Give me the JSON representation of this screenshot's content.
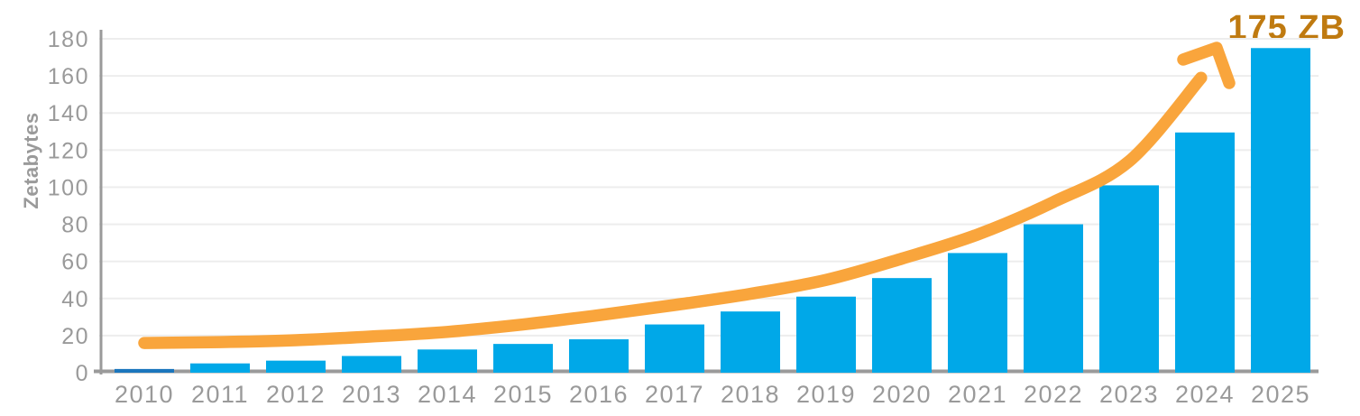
{
  "chart_data": {
    "type": "bar",
    "title": "",
    "xlabel": "",
    "ylabel": "Zetabytes",
    "categories": [
      "2010",
      "2011",
      "2012",
      "2013",
      "2014",
      "2015",
      "2016",
      "2017",
      "2018",
      "2019",
      "2020",
      "2021",
      "2022",
      "2023",
      "2024",
      "2025"
    ],
    "values": [
      2,
      5,
      6.5,
      9,
      12.5,
      15.5,
      18,
      26,
      33,
      41,
      51,
      64.5,
      80,
      101,
      129.5,
      175
    ],
    "ylim": [
      0,
      180
    ],
    "yticks": [
      "0",
      "20",
      "40",
      "60",
      "80",
      "100",
      "120",
      "140",
      "160",
      "180"
    ],
    "grid": true,
    "legend": false,
    "bar_color": "#00a8e8",
    "first_bar_color": "#1b76bd",
    "annotation": {
      "label": "175 ZB",
      "color": "#bf7a10"
    },
    "trend_line": {
      "color": "#f9a53c",
      "points": [
        [
          2010,
          16
        ],
        [
          2011,
          16.5
        ],
        [
          2012,
          17.5
        ],
        [
          2013,
          19.5
        ],
        [
          2014,
          22
        ],
        [
          2015,
          26
        ],
        [
          2016,
          31
        ],
        [
          2017,
          36.5
        ],
        [
          2018,
          42.5
        ],
        [
          2019,
          50
        ],
        [
          2020,
          61.5
        ],
        [
          2021,
          74.5
        ],
        [
          2022,
          92
        ],
        [
          2023,
          114
        ],
        [
          2023.95,
          159
        ]
      ]
    }
  },
  "colors": {
    "axis": "#9a9a9a",
    "tick_text": "#9a9a9a",
    "gridline": "#ededed",
    "background": "#ffffff"
  }
}
